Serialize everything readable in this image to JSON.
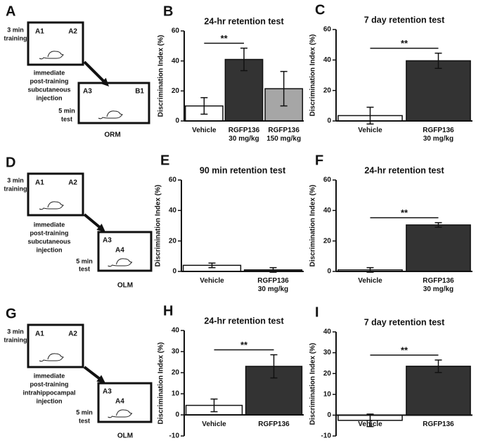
{
  "diagrams": [
    {
      "letter": "A",
      "training": [
        "3 min",
        "training"
      ],
      "box1": [
        "A1",
        "A2"
      ],
      "injection": [
        "immediate",
        "post-training",
        "subcutaneous",
        "injection"
      ],
      "box2": [
        "A3",
        "B1"
      ],
      "test": [
        "5 min",
        "test"
      ],
      "task": "ORM"
    },
    {
      "letter": "D",
      "training": [
        "3 min",
        "training"
      ],
      "box1": [
        "A1",
        "A2"
      ],
      "injection": [
        "immediate",
        "post-training",
        "subcutaneous",
        "injection"
      ],
      "box2": [
        "A3",
        "A4"
      ],
      "test": [
        "5 min",
        "test"
      ],
      "task": "OLM"
    },
    {
      "letter": "G",
      "training": [
        "3 min",
        "training"
      ],
      "box1": [
        "A1",
        "A2"
      ],
      "injection": [
        "immediate",
        "post-training",
        "intrahippocampal",
        "injection"
      ],
      "box2": [
        "A3",
        "A4"
      ],
      "test": [
        "5 min",
        "test"
      ],
      "task": "OLM"
    }
  ],
  "chart_data": [
    {
      "type": "bar",
      "panel_label": "B",
      "title": "24-hr retention test",
      "ylabel": "Discrimination Index (%)",
      "categories": [
        "Vehicle",
        "RGFP136\n30 mg/kg",
        "RGFP136\n150 mg/kg"
      ],
      "values": [
        10,
        41,
        21.5
      ],
      "errors": [
        5.5,
        7.5,
        11.5
      ],
      "colors": [
        "#ffffff",
        "#333333",
        "#a6a6a6"
      ],
      "ylim": [
        0,
        60
      ],
      "yticks": [
        0,
        20,
        40,
        60
      ],
      "significance": "**"
    },
    {
      "type": "bar",
      "panel_label": "C",
      "title": "7 day retention test",
      "ylabel": "Discrimination Index (%)",
      "categories": [
        "Vehicle",
        "RGFP136\n30 mg/kg"
      ],
      "values": [
        3.5,
        39.5
      ],
      "errors": [
        5.5,
        5
      ],
      "colors": [
        "#ffffff",
        "#333333"
      ],
      "ylim": [
        0,
        60
      ],
      "yticks": [
        0,
        20,
        40,
        60
      ],
      "significance": "**"
    },
    {
      "type": "bar",
      "panel_label": "E",
      "title": "90 min retention test",
      "ylabel": "Discrimination Index (%)",
      "categories": [
        "Vehicle",
        "RGFP136\n30 mg/kg"
      ],
      "values": [
        4,
        1
      ],
      "errors": [
        1.5,
        1.5
      ],
      "colors": [
        "#ffffff",
        "#333333"
      ],
      "ylim": [
        0,
        60
      ],
      "yticks": [
        0,
        20,
        40,
        60
      ]
    },
    {
      "type": "bar",
      "panel_label": "F",
      "title": "24-hr retention test",
      "ylabel": "Discrimination Index (%)",
      "categories": [
        "Vehicle",
        "RGFP136\n30 mg/kg"
      ],
      "values": [
        1,
        30.5
      ],
      "errors": [
        1.5,
        1.5
      ],
      "colors": [
        "#ffffff",
        "#333333"
      ],
      "ylim": [
        0,
        60
      ],
      "yticks": [
        0,
        20,
        40,
        60
      ],
      "significance": "**"
    },
    {
      "type": "bar",
      "panel_label": "H",
      "title": "24-hr retention test",
      "ylabel": "Discrimination Index (%)",
      "categories": [
        "Vehicle",
        "RGFP136"
      ],
      "values": [
        4.5,
        23
      ],
      "errors": [
        3,
        5.5
      ],
      "colors": [
        "#ffffff",
        "#333333"
      ],
      "ylim": [
        -10,
        40
      ],
      "yticks": [
        -10,
        0,
        10,
        20,
        30,
        40
      ],
      "significance": "**"
    },
    {
      "type": "bar",
      "panel_label": "I",
      "title": "7 day retention test",
      "ylabel": "Discrimination Index (%)",
      "categories": [
        "Vehicle",
        "RGFP136"
      ],
      "values": [
        -2.5,
        23.5
      ],
      "errors": [
        3,
        3
      ],
      "colors": [
        "#ffffff",
        "#333333"
      ],
      "ylim": [
        -10,
        40
      ],
      "yticks": [
        -10,
        0,
        10,
        20,
        30,
        40
      ],
      "significance": "**"
    }
  ]
}
